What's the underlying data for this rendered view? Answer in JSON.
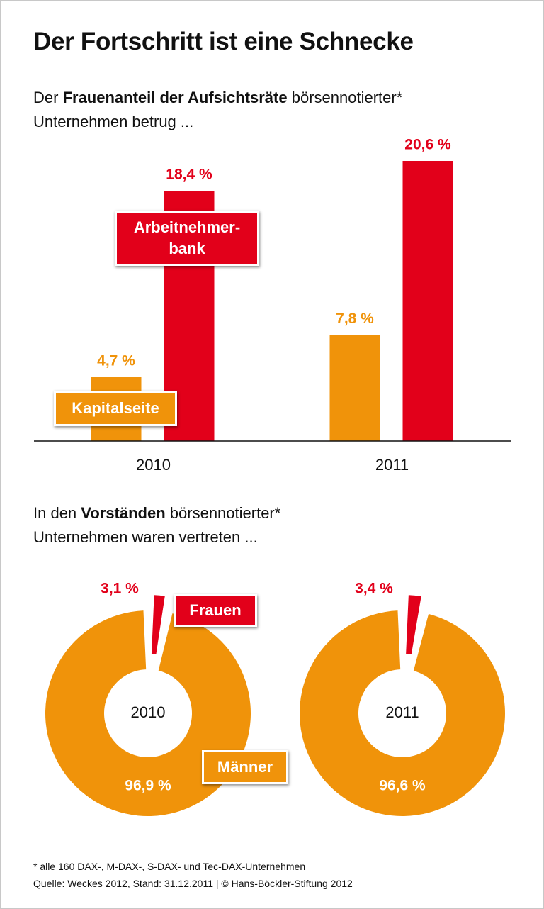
{
  "title": "Der Fortschritt ist eine Schnecke",
  "chart_data": [
    {
      "type": "bar",
      "subtitle": [
        "Der ",
        "Frauenanteil der Aufsichtsräte",
        " börsennotierter*\nUnternehmen betrug ..."
      ],
      "categories": [
        "2010",
        "2011"
      ],
      "series": [
        {
          "name": "Kapitalseite",
          "color": "#f0930a",
          "values": [
            4.7,
            7.8
          ],
          "value_labels": [
            "4,7 %",
            "7,8 %"
          ]
        },
        {
          "name": "Arbeitnehmer-\nbank",
          "color": "#e2001a",
          "values": [
            18.4,
            20.6
          ],
          "value_labels": [
            "18,4 %",
            "20,6 %"
          ]
        }
      ],
      "ylim": [
        0,
        20.6
      ]
    },
    {
      "type": "pie",
      "donut": true,
      "subtitle": [
        "In den ",
        "Vorständen",
        " börsennotierter*\nUnternehmen waren vertreten ..."
      ],
      "center_label": "2010",
      "categories": [
        "Frauen",
        "Männer"
      ],
      "colors": [
        "#e2001a",
        "#f0930a"
      ],
      "values": [
        3.1,
        96.9
      ],
      "value_labels": [
        "3,1 %",
        "96,9 %"
      ]
    },
    {
      "type": "pie",
      "donut": true,
      "center_label": "2011",
      "categories": [
        null,
        null
      ],
      "colors": [
        "#e2001a",
        "#f0930a"
      ],
      "values": [
        3.4,
        96.6
      ],
      "value_labels": [
        "3,4 %",
        "96,6 %"
      ]
    }
  ],
  "notes": [
    "* alle 160 DAX-, M-DAX-, S-DAX- und Tec-DAX-Unternehmen",
    "Quelle: Weckes 2012, Stand: 31.12.2011 | © Hans-Böckler-Stiftung 2012"
  ]
}
